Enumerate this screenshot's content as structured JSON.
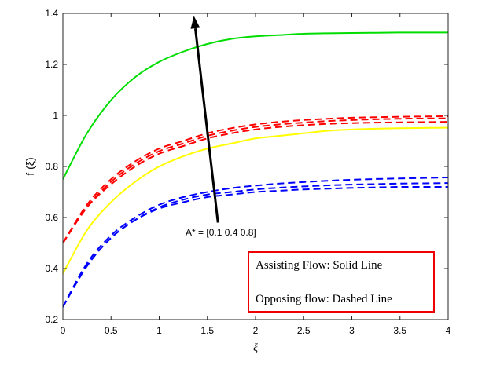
{
  "chart_data": {
    "type": "line",
    "title": "",
    "xlabel": "ξ",
    "ylabel": "f (ξ)",
    "xlim": [
      0,
      4
    ],
    "ylim": [
      0.2,
      1.4
    ],
    "xticks": [
      0,
      0.5,
      1,
      1.5,
      2,
      2.5,
      3,
      3.5,
      4
    ],
    "xtick_labels": [
      "0",
      "0.5",
      "1",
      "1.5",
      "2",
      "2.5",
      "3",
      "3.5",
      "4"
    ],
    "yticks": [
      0.2,
      0.4,
      0.6,
      0.8,
      1.0,
      1.2,
      1.4
    ],
    "ytick_labels": [
      "0.2",
      "0.4",
      "0.6",
      "0.8",
      "1",
      "1.2",
      "1.4"
    ],
    "grid": false,
    "x": [
      0,
      0.25,
      0.5,
      0.75,
      1,
      1.25,
      1.5,
      1.75,
      2,
      2.25,
      2.5,
      2.75,
      3,
      3.25,
      3.5,
      3.75,
      4
    ],
    "series": [
      {
        "style": "solid",
        "color": "#00dd00",
        "values": [
          0.75,
          0.93,
          1.06,
          1.15,
          1.21,
          1.25,
          1.28,
          1.3,
          1.31,
          1.315,
          1.32,
          1.322,
          1.323,
          1.324,
          1.325,
          1.325,
          1.325
        ]
      },
      {
        "style": "solid",
        "color": "#ffff00",
        "values": [
          0.38,
          0.55,
          0.66,
          0.74,
          0.8,
          0.84,
          0.87,
          0.89,
          0.91,
          0.92,
          0.93,
          0.94,
          0.945,
          0.948,
          0.95,
          0.951,
          0.952
        ]
      },
      {
        "style": "dashed",
        "color": "#ff0000",
        "values": [
          0.5,
          0.64,
          0.73,
          0.8,
          0.85,
          0.88,
          0.91,
          0.93,
          0.945,
          0.955,
          0.962,
          0.967,
          0.97,
          0.972,
          0.973,
          0.974,
          0.975
        ]
      },
      {
        "style": "dashed",
        "color": "#ff0000",
        "values": [
          0.5,
          0.64,
          0.74,
          0.81,
          0.86,
          0.89,
          0.92,
          0.94,
          0.955,
          0.965,
          0.972,
          0.978,
          0.982,
          0.985,
          0.987,
          0.988,
          0.989
        ]
      },
      {
        "style": "dashed",
        "color": "#ff0000",
        "values": [
          0.5,
          0.65,
          0.75,
          0.82,
          0.87,
          0.9,
          0.93,
          0.95,
          0.965,
          0.975,
          0.982,
          0.987,
          0.991,
          0.993,
          0.995,
          0.996,
          0.997
        ]
      },
      {
        "style": "dashed",
        "color": "#0000ff",
        "values": [
          0.25,
          0.41,
          0.52,
          0.59,
          0.635,
          0.66,
          0.68,
          0.69,
          0.7,
          0.705,
          0.71,
          0.713,
          0.716,
          0.718,
          0.72,
          0.72,
          0.72
        ]
      },
      {
        "style": "dashed",
        "color": "#0000ff",
        "values": [
          0.25,
          0.41,
          0.52,
          0.59,
          0.64,
          0.67,
          0.69,
          0.7,
          0.71,
          0.717,
          0.722,
          0.726,
          0.729,
          0.731,
          0.733,
          0.734,
          0.735
        ]
      },
      {
        "style": "dashed",
        "color": "#0000ff",
        "values": [
          0.25,
          0.42,
          0.53,
          0.6,
          0.65,
          0.68,
          0.7,
          0.715,
          0.725,
          0.733,
          0.739,
          0.744,
          0.748,
          0.751,
          0.753,
          0.755,
          0.757
        ]
      }
    ],
    "arrow": {
      "from": [
        1.61,
        0.58
      ],
      "to": [
        1.36,
        1.39
      ],
      "color": "#000000"
    },
    "annotations": [
      {
        "text": "A* = [0.1  0.4  0.8]",
        "x": 1.64,
        "y": 0.53
      }
    ],
    "legend_box": {
      "border_color": "#ee0000",
      "lines": [
        "Assisting Flow:  Solid Line",
        "Opposing flow: Dashed Line"
      ]
    }
  }
}
